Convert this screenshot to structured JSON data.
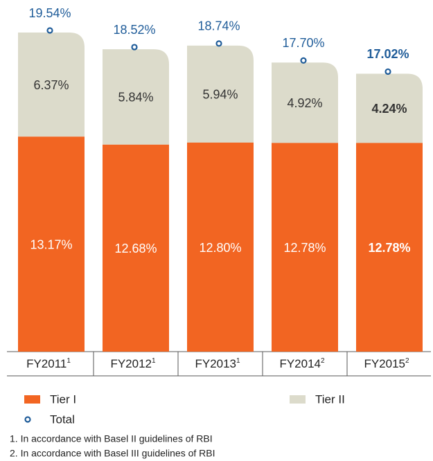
{
  "chart_data": {
    "type": "stacked_bar",
    "categories": [
      "FY2011",
      "FY2012",
      "FY2013",
      "FY2014",
      "FY2015"
    ],
    "category_notes": [
      "1",
      "1",
      "1",
      "2",
      "2"
    ],
    "series": [
      {
        "name": "Tier I",
        "color": "#f26522",
        "role": "stack",
        "values": [
          13.17,
          12.68,
          12.8,
          12.78,
          12.78
        ],
        "value_labels": [
          "13.17%",
          "12.68%",
          "12.80%",
          "12.78%",
          "12.78%"
        ]
      },
      {
        "name": "Tier II",
        "color": "#dcdbcb",
        "role": "stack",
        "values": [
          6.37,
          5.84,
          5.94,
          4.92,
          4.24
        ],
        "value_labels": [
          "6.37%",
          "5.84%",
          "5.94%",
          "4.92%",
          "4.24%"
        ]
      },
      {
        "name": "Total",
        "color": "#1f5c99",
        "role": "total",
        "values": [
          19.54,
          18.52,
          18.74,
          17.7,
          17.02
        ],
        "value_labels": [
          "19.54%",
          "18.52%",
          "18.74%",
          "17.70%",
          "17.02%"
        ]
      }
    ],
    "bold_last": true,
    "notes": [
      "1. In accordance with Basel II guidelines of RBI",
      "2. In accordance with Basel III guidelines of RBI"
    ]
  }
}
